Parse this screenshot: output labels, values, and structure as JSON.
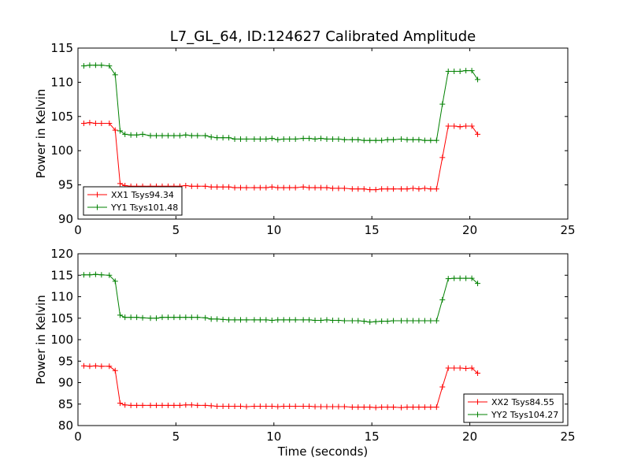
{
  "figure": {
    "title": "L7_GL_64, ID:124627 Calibrated Amplitude",
    "xlabel": "Time (seconds)"
  },
  "chart_data": [
    {
      "type": "line",
      "title": "L7_GL_64, ID:124627 Calibrated Amplitude",
      "xlabel": "",
      "ylabel": "Power in Kelvin",
      "xlim": [
        0,
        25
      ],
      "ylim": [
        90,
        115
      ],
      "xticks": [
        0,
        5,
        10,
        15,
        20,
        25
      ],
      "yticks": [
        90,
        95,
        100,
        105,
        110,
        115
      ],
      "legend_position": "lower-left",
      "x": [
        0.3,
        0.6,
        0.9,
        1.2,
        1.6,
        1.9,
        2.15,
        2.4,
        2.7,
        3.0,
        3.3,
        3.7,
        4.0,
        4.3,
        4.6,
        4.9,
        5.2,
        5.5,
        5.8,
        6.1,
        6.5,
        6.8,
        7.1,
        7.4,
        7.7,
        8.0,
        8.3,
        8.6,
        9.0,
        9.3,
        9.6,
        9.9,
        10.2,
        10.5,
        10.8,
        11.1,
        11.5,
        11.8,
        12.1,
        12.4,
        12.7,
        13.0,
        13.3,
        13.6,
        14.0,
        14.3,
        14.6,
        14.9,
        15.2,
        15.5,
        15.8,
        16.1,
        16.5,
        16.8,
        17.1,
        17.4,
        17.7,
        18.0,
        18.3,
        18.6,
        18.9,
        19.2,
        19.5,
        19.8,
        20.1,
        20.4
      ],
      "series": [
        {
          "name": "XX1 Tsys94.34",
          "color": "#ff0000",
          "values": [
            104.0,
            104.1,
            104.0,
            104.0,
            104.0,
            103.0,
            95.2,
            94.9,
            94.8,
            94.8,
            94.8,
            94.8,
            94.8,
            94.8,
            94.8,
            94.8,
            94.8,
            94.9,
            94.8,
            94.8,
            94.8,
            94.7,
            94.7,
            94.7,
            94.7,
            94.6,
            94.6,
            94.6,
            94.6,
            94.6,
            94.6,
            94.7,
            94.6,
            94.6,
            94.6,
            94.6,
            94.7,
            94.6,
            94.6,
            94.6,
            94.6,
            94.5,
            94.5,
            94.5,
            94.4,
            94.4,
            94.4,
            94.3,
            94.3,
            94.4,
            94.4,
            94.4,
            94.4,
            94.4,
            94.5,
            94.4,
            94.5,
            94.4,
            94.4,
            99.0,
            103.6,
            103.6,
            103.5,
            103.6,
            103.6,
            102.4
          ]
        },
        {
          "name": "YY1 Tsys101.48",
          "color": "#008000",
          "values": [
            112.4,
            112.5,
            112.5,
            112.5,
            112.4,
            111.1,
            102.9,
            102.4,
            102.3,
            102.3,
            102.4,
            102.2,
            102.2,
            102.2,
            102.2,
            102.2,
            102.2,
            102.3,
            102.2,
            102.2,
            102.2,
            102.0,
            101.9,
            101.9,
            101.9,
            101.7,
            101.7,
            101.7,
            101.7,
            101.7,
            101.7,
            101.8,
            101.6,
            101.7,
            101.7,
            101.7,
            101.8,
            101.8,
            101.7,
            101.8,
            101.7,
            101.7,
            101.7,
            101.6,
            101.6,
            101.6,
            101.5,
            101.5,
            101.5,
            101.5,
            101.6,
            101.6,
            101.7,
            101.6,
            101.6,
            101.6,
            101.5,
            101.5,
            101.5,
            106.8,
            111.6,
            111.6,
            111.6,
            111.7,
            111.7,
            110.4
          ]
        }
      ]
    },
    {
      "type": "line",
      "title": "",
      "xlabel": "Time (seconds)",
      "ylabel": "Power in Kelvin",
      "xlim": [
        0,
        25
      ],
      "ylim": [
        80,
        120
      ],
      "xticks": [
        0,
        5,
        10,
        15,
        20,
        25
      ],
      "yticks": [
        80,
        85,
        90,
        95,
        100,
        105,
        110,
        115,
        120
      ],
      "legend_position": "lower-right",
      "x": [
        0.3,
        0.6,
        0.9,
        1.2,
        1.6,
        1.9,
        2.15,
        2.4,
        2.7,
        3.0,
        3.3,
        3.7,
        4.0,
        4.3,
        4.6,
        4.9,
        5.2,
        5.5,
        5.8,
        6.1,
        6.5,
        6.8,
        7.1,
        7.4,
        7.7,
        8.0,
        8.3,
        8.6,
        9.0,
        9.3,
        9.6,
        9.9,
        10.2,
        10.5,
        10.8,
        11.1,
        11.5,
        11.8,
        12.1,
        12.4,
        12.7,
        13.0,
        13.3,
        13.6,
        14.0,
        14.3,
        14.6,
        14.9,
        15.2,
        15.5,
        15.8,
        16.1,
        16.5,
        16.8,
        17.1,
        17.4,
        17.7,
        18.0,
        18.3,
        18.6,
        18.9,
        19.2,
        19.5,
        19.8,
        20.1,
        20.4
      ],
      "series": [
        {
          "name": "XX2 Tsys84.55",
          "color": "#ff0000",
          "values": [
            93.9,
            93.8,
            93.9,
            93.8,
            93.8,
            92.8,
            85.2,
            84.8,
            84.7,
            84.7,
            84.7,
            84.7,
            84.7,
            84.7,
            84.7,
            84.7,
            84.7,
            84.8,
            84.8,
            84.7,
            84.7,
            84.6,
            84.5,
            84.5,
            84.5,
            84.5,
            84.5,
            84.4,
            84.5,
            84.5,
            84.5,
            84.5,
            84.4,
            84.5,
            84.5,
            84.5,
            84.5,
            84.5,
            84.4,
            84.4,
            84.4,
            84.4,
            84.4,
            84.4,
            84.3,
            84.3,
            84.3,
            84.3,
            84.2,
            84.3,
            84.3,
            84.3,
            84.2,
            84.3,
            84.3,
            84.3,
            84.3,
            84.3,
            84.3,
            89.0,
            93.4,
            93.4,
            93.4,
            93.3,
            93.4,
            92.2
          ]
        },
        {
          "name": "YY2 Tsys104.27",
          "color": "#008000",
          "values": [
            115.1,
            115.1,
            115.2,
            115.1,
            115.0,
            113.6,
            105.7,
            105.2,
            105.2,
            105.2,
            105.1,
            105.0,
            105.0,
            105.2,
            105.2,
            105.2,
            105.2,
            105.2,
            105.2,
            105.2,
            105.1,
            104.8,
            104.8,
            104.7,
            104.6,
            104.6,
            104.6,
            104.6,
            104.6,
            104.6,
            104.6,
            104.5,
            104.6,
            104.6,
            104.6,
            104.6,
            104.6,
            104.6,
            104.5,
            104.5,
            104.6,
            104.5,
            104.5,
            104.4,
            104.4,
            104.4,
            104.3,
            104.1,
            104.2,
            104.3,
            104.3,
            104.4,
            104.4,
            104.4,
            104.4,
            104.4,
            104.4,
            104.4,
            104.4,
            109.3,
            114.2,
            114.3,
            114.3,
            114.3,
            114.3,
            113.1
          ]
        }
      ]
    }
  ]
}
